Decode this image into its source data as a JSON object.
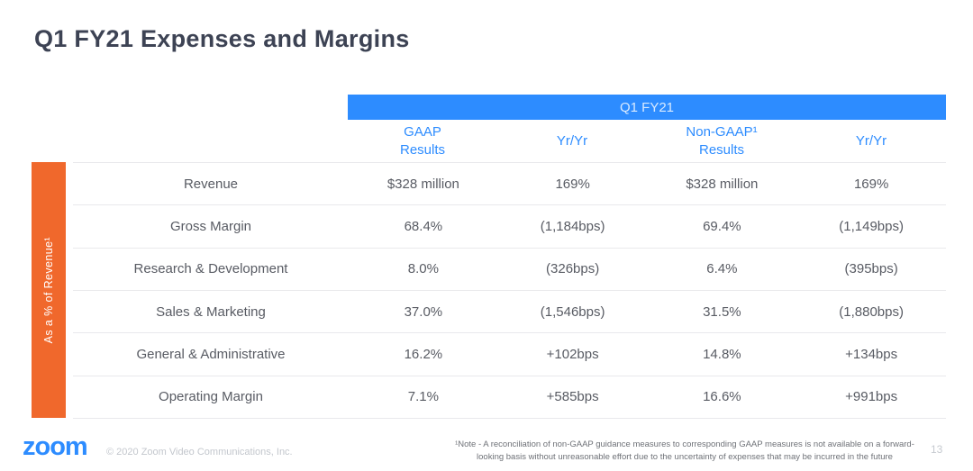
{
  "slide": {
    "title": "Q1 FY21 Expenses and Margins",
    "table": {
      "group_header": "Q1 FY21",
      "side_label": "As a % of Revenue¹",
      "columns": [
        {
          "line1": "GAAP",
          "line2": "Results"
        },
        {
          "line1": "Yr/Yr",
          "line2": ""
        },
        {
          "line1": "Non-GAAP¹",
          "line2": "Results"
        },
        {
          "line1": "Yr/Yr",
          "line2": ""
        }
      ],
      "rows": [
        {
          "label": "Revenue",
          "values": [
            "$328 million",
            "169%",
            "$328 million",
            "169%"
          ]
        },
        {
          "label": "Gross Margin",
          "values": [
            "68.4%",
            "(1,184bps)",
            "69.4%",
            "(1,149bps)"
          ]
        },
        {
          "label": "Research & Development",
          "values": [
            "8.0%",
            "(326bps)",
            "6.4%",
            "(395bps)"
          ]
        },
        {
          "label": "Sales & Marketing",
          "values": [
            "37.0%",
            "(1,546bps)",
            "31.5%",
            "(1,880bps)"
          ]
        },
        {
          "label": "General & Administrative",
          "values": [
            "16.2%",
            "+102bps",
            "14.8%",
            "+134bps"
          ]
        },
        {
          "label": "Operating Margin",
          "values": [
            "7.1%",
            "+585bps",
            "16.6%",
            "+991bps"
          ]
        }
      ]
    },
    "footer": {
      "logo": "zoom",
      "copyright": "© 2020 Zoom Video Communications, Inc.",
      "footnote_line1": "¹Note - A reconciliation of non-GAAP guidance measures to corresponding GAAP measures is not available on a forward-",
      "footnote_line2": "looking basis without unreasonable effort due to the uncertainty of expenses that may be incurred in the future",
      "page_number": "13"
    },
    "colors": {
      "accent_blue": "#2d8cff",
      "accent_orange": "#f0682c",
      "title_color": "#3d4354"
    }
  },
  "chart_data": {
    "type": "table",
    "title": "Q1 FY21 Expenses and Margins",
    "group_header": "Q1 FY21",
    "row_axis_label": "As a % of Revenue",
    "columns": [
      "GAAP Results",
      "Yr/Yr",
      "Non-GAAP Results",
      "Yr/Yr"
    ],
    "rows": [
      [
        "Revenue",
        "$328 million",
        "169%",
        "$328 million",
        "169%"
      ],
      [
        "Gross Margin",
        "68.4%",
        "(1,184bps)",
        "69.4%",
        "(1,149bps)"
      ],
      [
        "Research & Development",
        "8.0%",
        "(326bps)",
        "6.4%",
        "(395bps)"
      ],
      [
        "Sales & Marketing",
        "37.0%",
        "(1,546bps)",
        "31.5%",
        "(1,880bps)"
      ],
      [
        "General & Administrative",
        "16.2%",
        "+102bps",
        "14.8%",
        "+134bps"
      ],
      [
        "Operating Margin",
        "7.1%",
        "+585bps",
        "16.6%",
        "+991bps"
      ]
    ]
  }
}
